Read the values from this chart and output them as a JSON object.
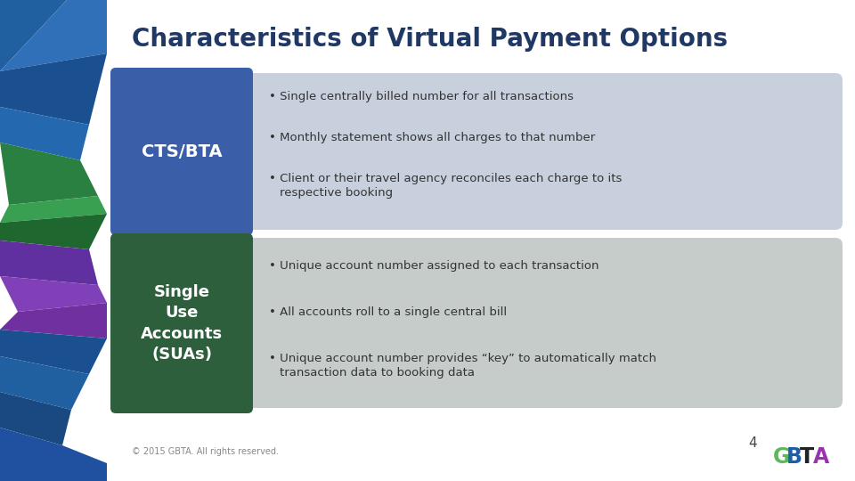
{
  "title": "Characteristics of Virtual Payment Options",
  "title_color": "#1F3864",
  "title_fontsize": 20,
  "background_color": "#FFFFFF",
  "box1_label_text": "CTS/BTA",
  "box1_bg_color": "#3A5FA8",
  "box1_text_color": "#FFFFFF",
  "box1_bullets": [
    "Single centrally billed number for all transactions",
    "Monthly statement shows all charges to that number",
    "Client or their travel agency reconciles each charge to its\nrespective booking"
  ],
  "box2_label_text": "Single\nUse\nAccounts\n(SUAs)",
  "box2_bg_color": "#2E5F3C",
  "box2_text_color": "#FFFFFF",
  "box2_bullets": [
    "Unique account number assigned to each transaction",
    "All accounts roll to a single central bill",
    "Unique account number provides “key” to automatically match\ntransaction data to booking data"
  ],
  "footer_text": "© 2015 GBTA. All rights reserved.",
  "page_number": "4",
  "bullet_char": "•"
}
